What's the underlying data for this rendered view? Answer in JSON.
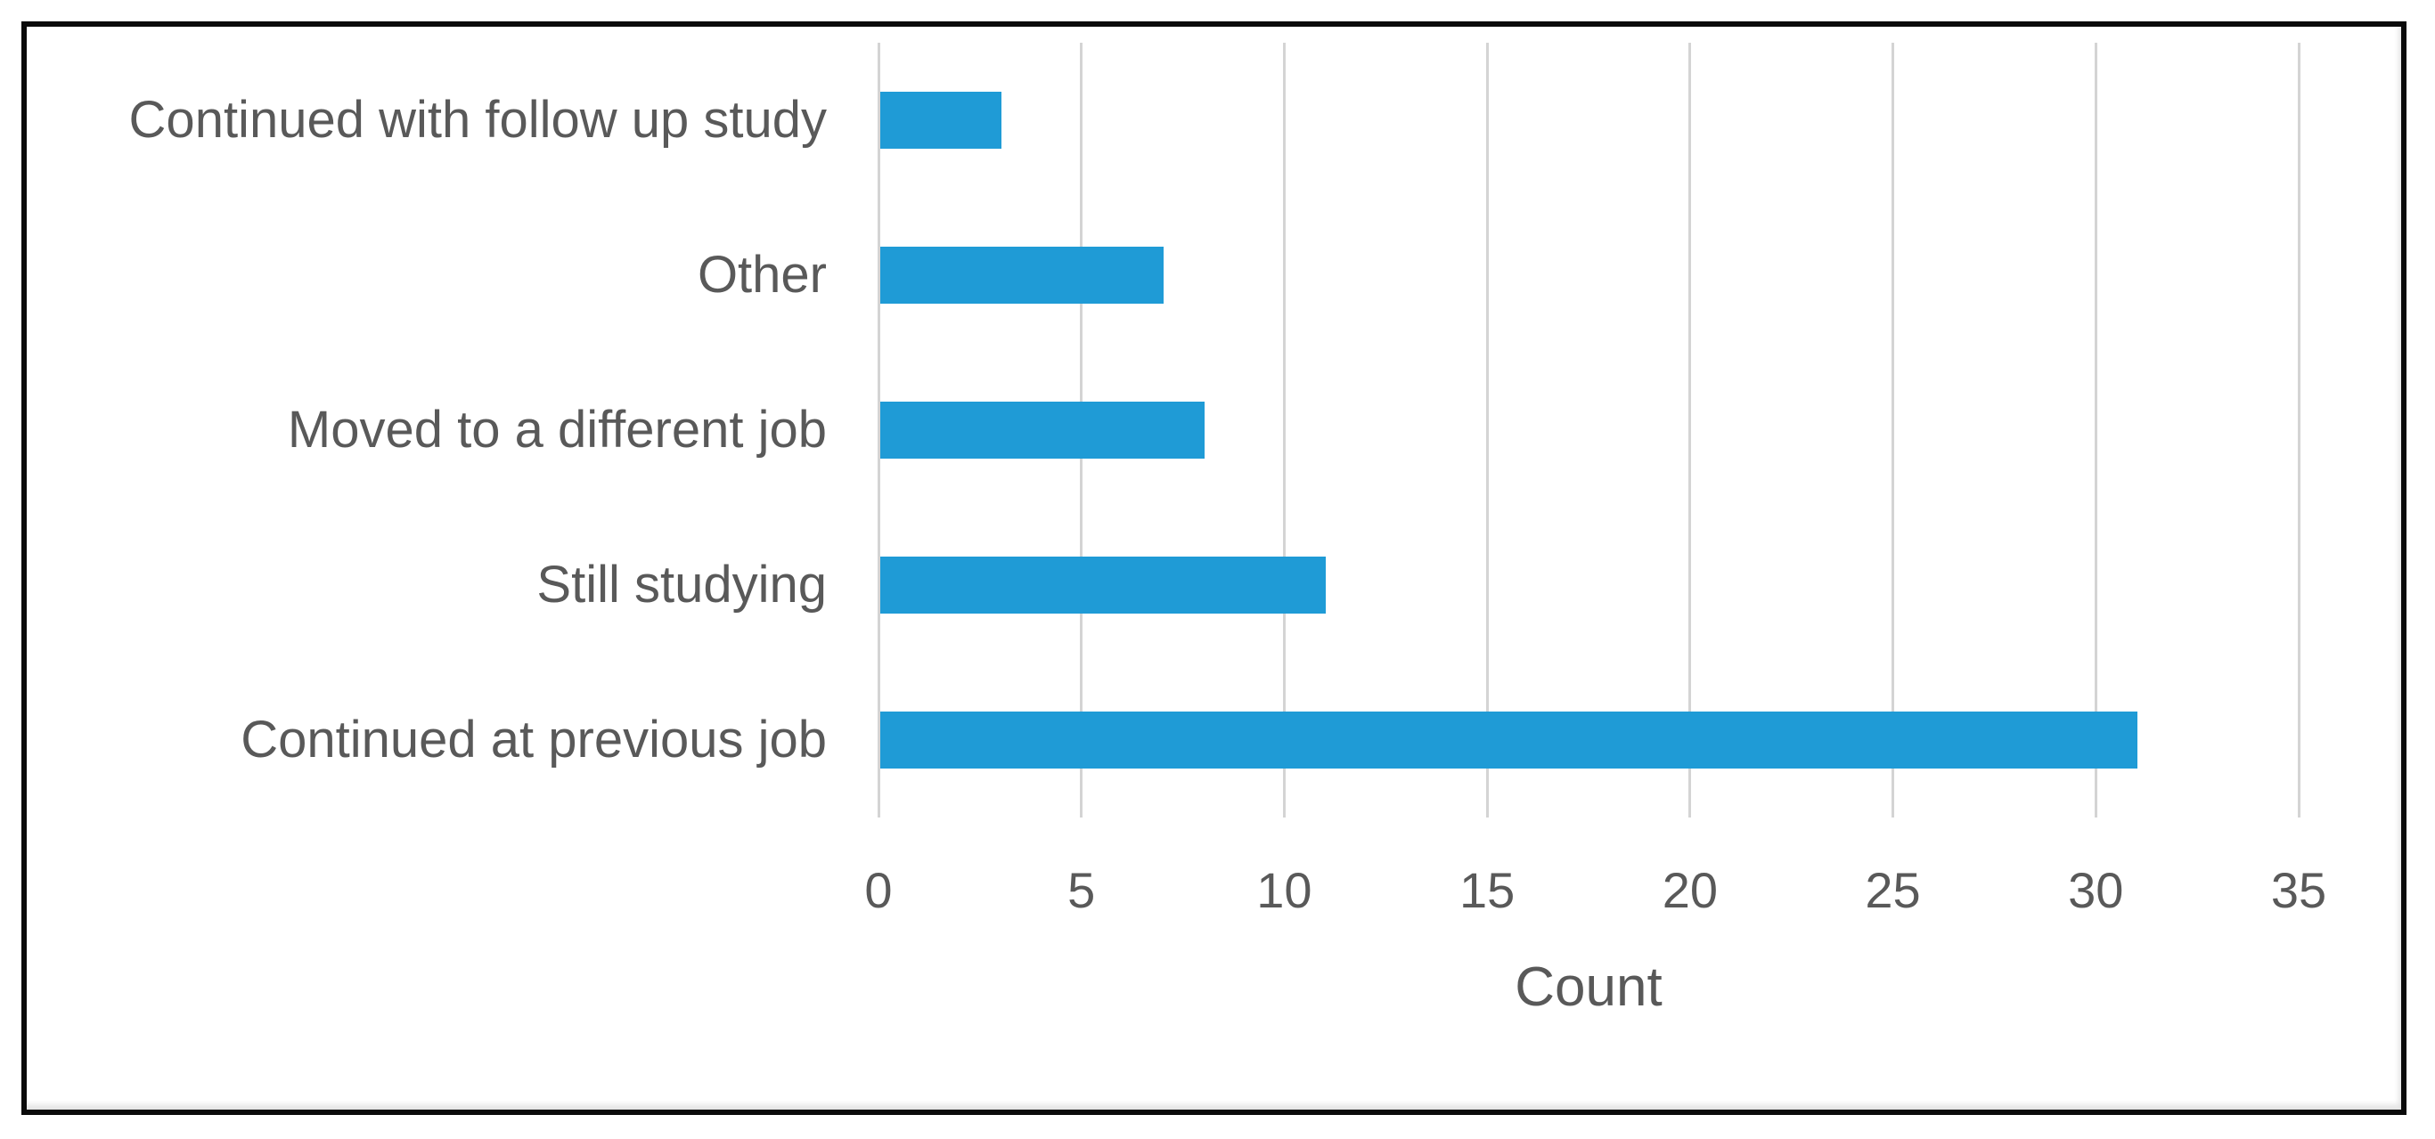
{
  "chart_data": {
    "type": "bar",
    "orientation": "horizontal",
    "title": "",
    "xlabel": "Count",
    "ylabel": "",
    "categories": [
      "Continued with follow up study",
      "Other",
      "Moved to a different job",
      "Still studying",
      "Continued at previous job"
    ],
    "values": [
      3,
      7,
      8,
      11,
      31
    ],
    "xlim": [
      0,
      35
    ],
    "xticks": [
      0,
      5,
      10,
      15,
      20,
      25,
      30,
      35
    ],
    "grid": true,
    "legend": "none",
    "colors": {
      "bar": "#1f9bd6",
      "gridline": "#d4d4d4",
      "text": "#595959",
      "frame_border": "#0b0b0b",
      "background": "#ffffff"
    }
  }
}
